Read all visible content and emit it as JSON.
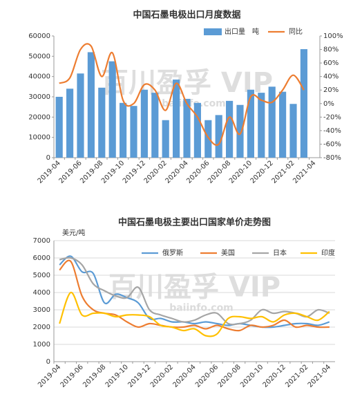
{
  "chart_data": [
    {
      "type": "bar",
      "title": "中国石墨电极出口月度数据",
      "watermark": [
        "百川盈孚 VIP",
        "baiinfo.com"
      ],
      "categories": [
        "2019-04",
        null,
        "2019-06",
        null,
        "2019-08",
        null,
        "2019-10",
        null,
        "2019-12",
        null,
        "2020-02",
        null,
        "2020-04",
        null,
        "2020-06",
        null,
        "2020-08",
        null,
        "2020-10",
        null,
        "2020-12",
        null,
        "2021-02",
        null,
        "2021-04"
      ],
      "series": [
        {
          "name": "出口量　吨",
          "type": "bar",
          "color": "#5b9bd5",
          "values": [
            30000,
            34000,
            41500,
            52000,
            34500,
            47500,
            27000,
            25500,
            33500,
            32000,
            18500,
            38500,
            29000,
            27000,
            18500,
            21000,
            28000,
            26000,
            33500,
            32000,
            35000,
            32500,
            26500,
            53500,
            null
          ]
        },
        {
          "name": "同比",
          "type": "line",
          "axis": "y2",
          "color": "#ed7d31",
          "values": [
            30,
            38,
            80,
            85,
            40,
            75,
            5,
            0,
            28,
            20,
            -10,
            30,
            0,
            -20,
            -50,
            -60,
            -20,
            -45,
            10,
            5,
            2,
            20,
            42,
            20,
            null
          ]
        }
      ],
      "ylim": [
        0,
        60000
      ],
      "yticks": [
        0,
        10000,
        20000,
        30000,
        40000,
        50000,
        60000
      ],
      "y2lim": [
        -80,
        100
      ],
      "y2ticks": [
        {
          "value": -80,
          "label": "-80%"
        },
        {
          "value": -60,
          "label": "-60%"
        },
        {
          "value": -40,
          "label": "-40%"
        },
        {
          "value": -20,
          "label": "-20%"
        },
        {
          "value": 0,
          "label": "0%"
        },
        {
          "value": 20,
          "label": "20%"
        },
        {
          "value": 40,
          "label": "40%"
        },
        {
          "value": 60,
          "label": "60%"
        },
        {
          "value": 80,
          "label": "80%"
        },
        {
          "value": 100,
          "label": "100%"
        }
      ],
      "grid": false,
      "legend": "top-right"
    },
    {
      "type": "line",
      "title": "中国石墨电极主要出口国家单价走势图",
      "y_label": "美元/吨",
      "watermark": [
        "百川盈孚 VIP",
        "baiinfo.com"
      ],
      "categories": [
        "2019-04",
        null,
        "2019-06",
        null,
        "2019-08",
        null,
        "2019-10",
        null,
        "2019-12",
        null,
        "2020-02",
        null,
        "2020-04",
        null,
        "2020-06",
        null,
        "2020-08",
        null,
        "2020-10",
        null,
        "2020-12",
        null,
        "2021-02",
        null,
        "2021-04"
      ],
      "series": [
        {
          "name": "俄罗斯",
          "color": "#5b9bd5",
          "values": [
            5600,
            6100,
            5200,
            5100,
            3400,
            3900,
            3700,
            3400,
            2500,
            2500,
            2300,
            2300,
            2200,
            2300,
            2200,
            2100,
            2200,
            2100,
            2000,
            2000,
            2100,
            2200,
            2200,
            2100,
            2300
          ]
        },
        {
          "name": "美国",
          "color": "#ed7d31",
          "values": [
            5300,
            5800,
            3800,
            3000,
            2800,
            2700,
            2300,
            2000,
            2200,
            2100,
            2000,
            2000,
            2100,
            1900,
            2100,
            1900,
            1800,
            2100,
            2000,
            2100,
            2400,
            2000,
            2100,
            2000,
            2000
          ]
        },
        {
          "name": "日本",
          "color": "#a5a5a5",
          "values": [
            5900,
            6000,
            5600,
            4500,
            4100,
            3800,
            3700,
            4300,
            3000,
            2700,
            2500,
            2300,
            2400,
            2700,
            2800,
            2200,
            2200,
            2400,
            3000,
            2800,
            2900,
            2800,
            2600,
            3000,
            2800
          ]
        },
        {
          "name": "印度",
          "color": "#ffc000",
          "values": [
            2200,
            4000,
            2700,
            2800,
            2800,
            2600,
            2700,
            2700,
            2600,
            2100,
            2000,
            1800,
            1900,
            1500,
            1600,
            2500,
            2600,
            2500,
            2600,
            2300,
            2700,
            2800,
            2600,
            2400,
            2900
          ]
        }
      ],
      "ylim": [
        0,
        7000
      ],
      "yticks": [
        0,
        1000,
        2000,
        3000,
        4000,
        5000,
        6000,
        7000
      ],
      "grid": true,
      "legend": "top-right"
    }
  ]
}
